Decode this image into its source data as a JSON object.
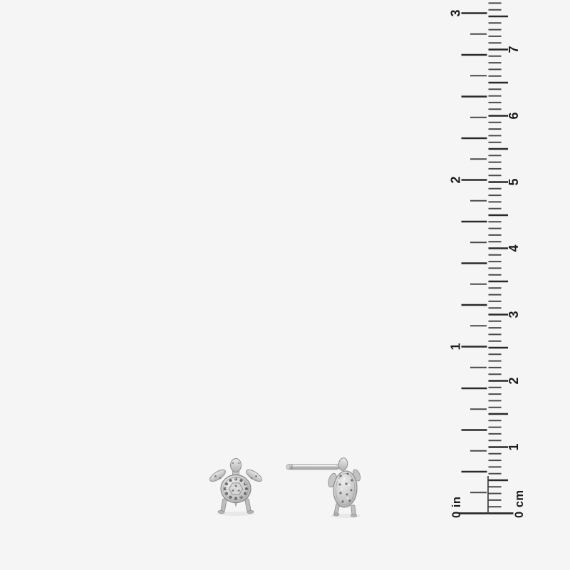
{
  "scene": {
    "background_color": "#f5f5f5",
    "objects": [
      "turtle stud earring front view",
      "turtle stud earring side view with post",
      "vertical ruler scale"
    ]
  },
  "ruler": {
    "inch_scale": {
      "numbers": [
        "1",
        "2",
        "3"
      ],
      "zero_label": "0 in"
    },
    "cm_scale": {
      "numbers": [
        "1",
        "2",
        "3",
        "4",
        "5",
        "6",
        "7"
      ],
      "zero_label": "0 cm"
    },
    "tick_color": "#2a2a2a",
    "minor_tick_color": "#4a4a4a"
  },
  "earrings": {
    "metal": {
      "light": "#e9e9e9",
      "mid": "#c0c0c0",
      "dark": "#8e8e8e",
      "detail": "#6b6b6b"
    }
  }
}
